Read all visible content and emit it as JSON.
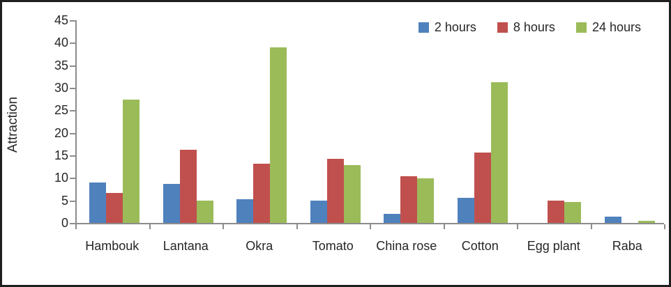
{
  "chart_data": {
    "type": "bar",
    "title": "",
    "xlabel": "",
    "ylabel": "Attraction",
    "ylim": [
      0,
      45
    ],
    "ytick_step": 5,
    "yticks": [
      0,
      5,
      10,
      15,
      20,
      25,
      30,
      35,
      40,
      45
    ],
    "grid": false,
    "legend_position": "top-right",
    "categories": [
      "Hambouk",
      "Lantana",
      "Okra",
      "Tomato",
      "China rose",
      "Cotton",
      "Egg plant",
      "Raba"
    ],
    "series": [
      {
        "name": "2 hours",
        "color": "#4f81bd",
        "values": [
          9.0,
          8.7,
          5.3,
          5.0,
          2.0,
          5.6,
          0,
          1.4
        ]
      },
      {
        "name": "8 hours",
        "color": "#c0504d",
        "values": [
          6.6,
          16.3,
          13.2,
          14.2,
          10.3,
          15.6,
          5.0,
          0
        ]
      },
      {
        "name": "24 hours",
        "color": "#9bbb59",
        "values": [
          27.4,
          4.9,
          38.9,
          12.8,
          9.9,
          31.2,
          4.6,
          0.4
        ]
      }
    ]
  },
  "colors": {
    "axis": "#8c8c8c",
    "text": "#262626",
    "frame_border": "#1f1f1f",
    "background": "#ffffff"
  }
}
